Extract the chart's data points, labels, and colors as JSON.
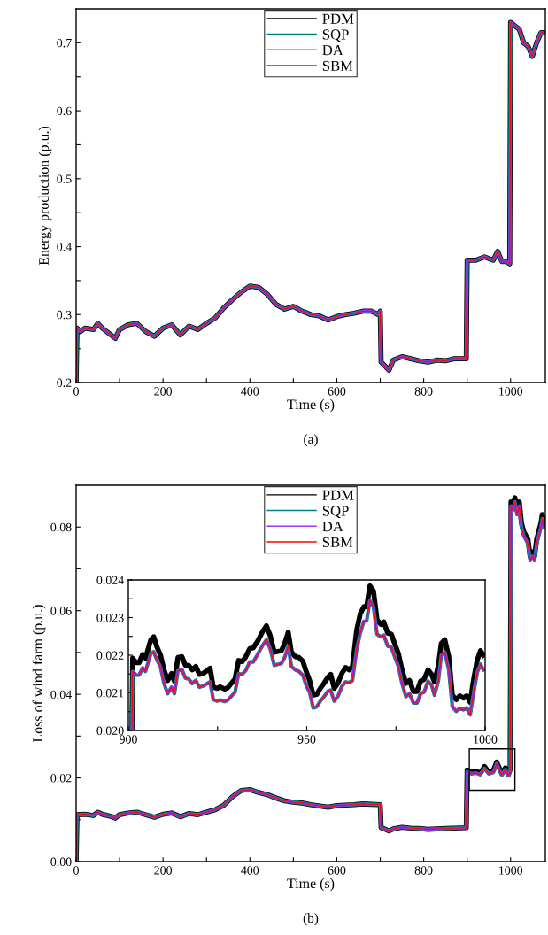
{
  "chart_data": [
    {
      "type": "line",
      "xlabel": "Time (s)",
      "ylabel": "Energy production (p.u.)",
      "annotations": [
        "(a)"
      ],
      "legend": "top",
      "xlim": [
        0,
        1080
      ],
      "ylim": [
        0.2,
        0.75
      ],
      "xticks": [
        0,
        {
          "value": 100,
          "label": null
        },
        200,
        {
          "value": 300,
          "label": null
        },
        400,
        {
          "value": 500,
          "label": null
        },
        600,
        {
          "value": 700,
          "label": null
        },
        800,
        {
          "value": 900,
          "label": null
        },
        1000
      ],
      "yticks": [
        0.2,
        {
          "value": 0.25,
          "label": null
        },
        0.3,
        {
          "value": 0.35,
          "label": null
        },
        0.4,
        {
          "value": 0.45,
          "label": null
        },
        0.5,
        {
          "value": 0.55,
          "label": null
        },
        0.6,
        {
          "value": 0.65,
          "label": null
        },
        0.7
      ],
      "x": [
        0,
        2,
        10,
        20,
        40,
        50,
        60,
        80,
        90,
        100,
        120,
        140,
        160,
        180,
        200,
        220,
        240,
        260,
        280,
        300,
        320,
        340,
        360,
        380,
        400,
        420,
        440,
        460,
        480,
        500,
        520,
        540,
        560,
        580,
        600,
        620,
        640,
        660,
        680,
        695,
        700,
        702,
        710,
        720,
        730,
        750,
        770,
        790,
        810,
        830,
        850,
        870,
        898,
        900,
        920,
        940,
        960,
        970,
        980,
        990,
        998,
        1000,
        1010,
        1020,
        1030,
        1040,
        1050,
        1060,
        1070,
        1075
      ],
      "series": [
        {
          "name": "PDM",
          "color": "#000000",
          "values": [
            0.2,
            0.28,
            0.275,
            0.28,
            0.278,
            0.287,
            0.28,
            0.27,
            0.265,
            0.278,
            0.285,
            0.287,
            0.275,
            0.268,
            0.28,
            0.285,
            0.27,
            0.283,
            0.278,
            0.287,
            0.295,
            0.31,
            0.322,
            0.333,
            0.342,
            0.34,
            0.33,
            0.315,
            0.308,
            0.312,
            0.305,
            0.3,
            0.298,
            0.292,
            0.297,
            0.3,
            0.302,
            0.305,
            0.305,
            0.3,
            0.305,
            0.23,
            0.225,
            0.218,
            0.233,
            0.238,
            0.235,
            0.232,
            0.23,
            0.233,
            0.232,
            0.235,
            0.235,
            0.38,
            0.38,
            0.385,
            0.38,
            0.393,
            0.378,
            0.378,
            0.375,
            0.73,
            0.725,
            0.72,
            0.7,
            0.695,
            0.68,
            0.7,
            0.715,
            0.715
          ]
        },
        {
          "name": "SQP",
          "color": "#008080",
          "values": [
            0.2,
            0.28,
            0.275,
            0.28,
            0.278,
            0.287,
            0.28,
            0.27,
            0.265,
            0.278,
            0.285,
            0.287,
            0.275,
            0.268,
            0.28,
            0.285,
            0.27,
            0.283,
            0.278,
            0.287,
            0.295,
            0.31,
            0.322,
            0.333,
            0.342,
            0.34,
            0.33,
            0.315,
            0.308,
            0.312,
            0.305,
            0.3,
            0.298,
            0.292,
            0.297,
            0.3,
            0.302,
            0.305,
            0.305,
            0.3,
            0.305,
            0.23,
            0.225,
            0.218,
            0.233,
            0.238,
            0.235,
            0.232,
            0.23,
            0.233,
            0.232,
            0.235,
            0.235,
            0.38,
            0.38,
            0.385,
            0.38,
            0.393,
            0.378,
            0.378,
            0.375,
            0.73,
            0.725,
            0.72,
            0.7,
            0.695,
            0.68,
            0.7,
            0.715,
            0.715
          ]
        },
        {
          "name": "DA",
          "color": "#9933ff",
          "values": [
            0.2,
            0.28,
            0.275,
            0.28,
            0.278,
            0.287,
            0.28,
            0.27,
            0.265,
            0.278,
            0.285,
            0.287,
            0.275,
            0.268,
            0.28,
            0.285,
            0.27,
            0.283,
            0.278,
            0.287,
            0.295,
            0.31,
            0.322,
            0.333,
            0.342,
            0.34,
            0.33,
            0.315,
            0.308,
            0.312,
            0.305,
            0.3,
            0.298,
            0.292,
            0.297,
            0.3,
            0.302,
            0.305,
            0.305,
            0.3,
            0.305,
            0.23,
            0.225,
            0.218,
            0.233,
            0.238,
            0.235,
            0.232,
            0.23,
            0.233,
            0.232,
            0.235,
            0.235,
            0.38,
            0.38,
            0.385,
            0.38,
            0.393,
            0.378,
            0.378,
            0.375,
            0.73,
            0.725,
            0.72,
            0.7,
            0.695,
            0.68,
            0.7,
            0.715,
            0.715
          ]
        },
        {
          "name": "SBM",
          "color": "#ff0000",
          "values": [
            0.2,
            0.28,
            0.275,
            0.28,
            0.278,
            0.287,
            0.28,
            0.27,
            0.265,
            0.278,
            0.285,
            0.287,
            0.275,
            0.268,
            0.28,
            0.285,
            0.27,
            0.283,
            0.278,
            0.287,
            0.295,
            0.31,
            0.322,
            0.333,
            0.342,
            0.34,
            0.33,
            0.315,
            0.308,
            0.312,
            0.305,
            0.3,
            0.298,
            0.292,
            0.297,
            0.3,
            0.302,
            0.305,
            0.305,
            0.3,
            0.305,
            0.23,
            0.225,
            0.218,
            0.233,
            0.238,
            0.235,
            0.232,
            0.23,
            0.233,
            0.232,
            0.235,
            0.235,
            0.38,
            0.38,
            0.385,
            0.38,
            0.393,
            0.378,
            0.378,
            0.375,
            0.73,
            0.725,
            0.72,
            0.7,
            0.695,
            0.68,
            0.7,
            0.715,
            0.715
          ]
        }
      ]
    },
    {
      "type": "line",
      "xlabel": "Time (s)",
      "ylabel": "Loss of wind farm (p.u.)",
      "annotations": [
        "(b)"
      ],
      "legend": "top",
      "xlim": [
        0,
        1080
      ],
      "ylim": [
        0,
        0.09
      ],
      "xticks": [
        0,
        {
          "value": 100,
          "label": null
        },
        200,
        {
          "value": 300,
          "label": null
        },
        400,
        {
          "value": 500,
          "label": null
        },
        600,
        {
          "value": 700,
          "label": null
        },
        800,
        {
          "value": 900,
          "label": null
        },
        1000
      ],
      "yticks": [
        {
          "value": 0,
          "label": "0.00"
        },
        {
          "value": 0.01,
          "label": null
        },
        {
          "value": 0.02,
          "label": "0.02"
        },
        {
          "value": 0.03,
          "label": null
        },
        {
          "value": 0.04,
          "label": "0.04"
        },
        {
          "value": 0.05,
          "label": null
        },
        {
          "value": 0.06,
          "label": "0.06"
        },
        {
          "value": 0.07,
          "label": null
        },
        {
          "value": 0.08,
          "label": "0.08"
        }
      ],
      "x": [
        0,
        2,
        20,
        40,
        50,
        60,
        80,
        90,
        100,
        120,
        140,
        160,
        180,
        200,
        220,
        240,
        260,
        280,
        300,
        320,
        340,
        360,
        380,
        400,
        420,
        440,
        460,
        480,
        500,
        520,
        540,
        560,
        580,
        600,
        620,
        640,
        660,
        680,
        700,
        702,
        710,
        720,
        730,
        750,
        770,
        790,
        810,
        830,
        850,
        870,
        898,
        900,
        910,
        920,
        930,
        940,
        950,
        960,
        968,
        980,
        988,
        995,
        999,
        1001,
        1005,
        1010,
        1015,
        1020,
        1025,
        1030,
        1040,
        1045,
        1050,
        1055,
        1060,
        1070,
        1073,
        1076
      ],
      "series": [
        {
          "name": "PDM",
          "color": "#000000",
          "values": [
            0,
            0.0112,
            0.0113,
            0.011,
            0.0118,
            0.0113,
            0.0108,
            0.0104,
            0.0112,
            0.0116,
            0.0118,
            0.0112,
            0.0106,
            0.0113,
            0.0116,
            0.0107,
            0.0115,
            0.0112,
            0.0118,
            0.0124,
            0.0135,
            0.0155,
            0.017,
            0.0172,
            0.0165,
            0.016,
            0.0152,
            0.0145,
            0.0142,
            0.014,
            0.0136,
            0.0133,
            0.013,
            0.0134,
            0.0135,
            0.0136,
            0.0138,
            0.0137,
            0.0136,
            0.0081,
            0.0078,
            0.0073,
            0.0078,
            0.0082,
            0.008,
            0.0079,
            0.0077,
            0.0078,
            0.0079,
            0.008,
            0.0081,
            0.0219,
            0.0214,
            0.0216,
            0.0211,
            0.0227,
            0.0213,
            0.0217,
            0.0238,
            0.021,
            0.0224,
            0.0208,
            0.022,
            0.086,
            0.085,
            0.087,
            0.084,
            0.086,
            0.081,
            0.079,
            0.077,
            0.073,
            0.074,
            0.073,
            0.077,
            0.081,
            0.083,
            0.081
          ]
        },
        {
          "name": "SQP",
          "color": "#008080",
          "values": [
            0,
            0.0112,
            0.0113,
            0.011,
            0.0118,
            0.0113,
            0.0108,
            0.0104,
            0.0112,
            0.0116,
            0.0118,
            0.0112,
            0.0106,
            0.0113,
            0.0116,
            0.0107,
            0.0115,
            0.0112,
            0.0118,
            0.0124,
            0.0135,
            0.0155,
            0.017,
            0.0172,
            0.0165,
            0.016,
            0.0152,
            0.0145,
            0.0142,
            0.014,
            0.0136,
            0.0133,
            0.013,
            0.0134,
            0.0135,
            0.0136,
            0.0138,
            0.0137,
            0.0136,
            0.0081,
            0.0078,
            0.0073,
            0.0078,
            0.0082,
            0.008,
            0.0079,
            0.0077,
            0.0078,
            0.0079,
            0.008,
            0.0081,
            0.0215,
            0.021,
            0.0212,
            0.0208,
            0.0223,
            0.021,
            0.0213,
            0.0234,
            0.0207,
            0.022,
            0.0205,
            0.0216,
            0.085,
            0.084,
            0.086,
            0.083,
            0.085,
            0.08,
            0.078,
            0.076,
            0.072,
            0.073,
            0.072,
            0.076,
            0.08,
            0.082,
            0.08
          ]
        },
        {
          "name": "DA",
          "color": "#9933ff",
          "values": [
            0,
            0.0112,
            0.0113,
            0.011,
            0.0118,
            0.0113,
            0.0108,
            0.0104,
            0.0112,
            0.0116,
            0.0118,
            0.0112,
            0.0106,
            0.0113,
            0.0116,
            0.0107,
            0.0115,
            0.0112,
            0.0118,
            0.0124,
            0.0135,
            0.0155,
            0.017,
            0.0172,
            0.0165,
            0.016,
            0.0152,
            0.0145,
            0.0142,
            0.014,
            0.0136,
            0.0133,
            0.013,
            0.0134,
            0.0135,
            0.0136,
            0.0138,
            0.0137,
            0.0136,
            0.0081,
            0.0078,
            0.0073,
            0.0078,
            0.0082,
            0.008,
            0.0079,
            0.0077,
            0.0078,
            0.0079,
            0.008,
            0.0081,
            0.0215,
            0.021,
            0.0212,
            0.0208,
            0.0223,
            0.021,
            0.0213,
            0.0234,
            0.0207,
            0.022,
            0.0205,
            0.0216,
            0.085,
            0.084,
            0.086,
            0.083,
            0.085,
            0.08,
            0.078,
            0.076,
            0.072,
            0.073,
            0.072,
            0.076,
            0.08,
            0.082,
            0.08
          ]
        },
        {
          "name": "SBM",
          "color": "#ff0000",
          "values": [
            0,
            0.0112,
            0.0113,
            0.011,
            0.0118,
            0.0113,
            0.0108,
            0.0104,
            0.0112,
            0.0116,
            0.0118,
            0.0112,
            0.0106,
            0.0113,
            0.0116,
            0.0107,
            0.0115,
            0.0112,
            0.0118,
            0.0124,
            0.0135,
            0.0155,
            0.017,
            0.0172,
            0.0165,
            0.016,
            0.0152,
            0.0145,
            0.0142,
            0.014,
            0.0136,
            0.0133,
            0.013,
            0.0134,
            0.0135,
            0.0136,
            0.0138,
            0.0137,
            0.0136,
            0.0081,
            0.0078,
            0.0073,
            0.0078,
            0.0082,
            0.008,
            0.0079,
            0.0077,
            0.0078,
            0.0079,
            0.008,
            0.0081,
            0.0215,
            0.021,
            0.0212,
            0.0208,
            0.0223,
            0.021,
            0.0213,
            0.0234,
            0.0207,
            0.022,
            0.0205,
            0.0216,
            0.085,
            0.084,
            0.086,
            0.083,
            0.085,
            0.08,
            0.078,
            0.076,
            0.072,
            0.073,
            0.072,
            0.076,
            0.08,
            0.082,
            0.08
          ]
        }
      ]
    },
    {
      "type": "line",
      "xlim": [
        900,
        1000
      ],
      "ylim": [
        0.02,
        0.024
      ],
      "xticks": [
        900,
        {
          "value": 925,
          "label": null
        },
        950,
        {
          "value": 975,
          "label": null
        },
        1000
      ],
      "yticks": [
        {
          "value": 0.02,
          "label": "0.020"
        },
        {
          "value": 0.0205,
          "label": null
        },
        {
          "value": 0.021,
          "label": "0.021"
        },
        {
          "value": 0.0215,
          "label": null
        },
        {
          "value": 0.022,
          "label": "0.022"
        },
        {
          "value": 0.0225,
          "label": null
        },
        {
          "value": 0.023,
          "label": "0.023"
        },
        {
          "value": 0.0235,
          "label": null
        },
        {
          "value": 0.024,
          "label": "0.024"
        }
      ],
      "x": [
        901.0,
        901.2,
        902.2,
        903.0,
        904.0,
        904.8,
        906.3,
        907.1,
        908.0,
        909.0,
        910.0,
        911.0,
        912.1,
        912.9,
        913.9,
        915.0,
        916.0,
        916.9,
        917.9,
        918.9,
        919.9,
        920.9,
        922.9,
        923.8,
        924.9,
        925.7,
        927.0,
        927.9,
        929.9,
        930.9,
        931.9,
        932.9,
        934.0,
        935.0,
        936.1,
        937.7,
        938.7,
        939.8,
        940.9,
        941.9,
        942.9,
        943.8,
        944.8,
        945.7,
        946.8,
        947.8,
        948.9,
        949.9,
        950.8,
        951.8,
        952.8,
        953.8,
        954.8,
        955.9,
        956.7,
        957.7,
        958.8,
        959.9,
        960.9,
        961.9,
        962.8,
        964.0,
        965.0,
        966.0,
        966.8,
        967.7,
        968.7,
        969.7,
        970.8,
        971.6,
        972.7,
        973.7,
        974.8,
        975.7,
        976.7,
        977.8,
        978.8,
        979.9,
        980.9,
        981.9,
        982.9,
        984.0,
        985.0,
        985.8,
        986.9,
        987.7,
        988.7,
        989.8,
        990.8,
        991.9,
        992.9,
        993.9,
        994.8,
        995.8,
        996.8,
        997.8,
        998.7,
        999.5
      ],
      "series": [
        {
          "color": "#000000",
          "values": [
            0.02,
            0.02192,
            0.0218,
            0.0218,
            0.02202,
            0.02192,
            0.02241,
            0.02249,
            0.02222,
            0.022,
            0.02161,
            0.02133,
            0.02151,
            0.02131,
            0.02194,
            0.02196,
            0.02173,
            0.02173,
            0.02161,
            0.0217,
            0.02149,
            0.02151,
            0.02165,
            0.02115,
            0.02112,
            0.02116,
            0.0211,
            0.02114,
            0.02137,
            0.02186,
            0.02183,
            0.02196,
            0.02217,
            0.0222,
            0.02235,
            0.02264,
            0.02278,
            0.02251,
            0.02208,
            0.0221,
            0.02212,
            0.02231,
            0.02261,
            0.02208,
            0.02196,
            0.02194,
            0.02184,
            0.02155,
            0.02133,
            0.02094,
            0.02096,
            0.02112,
            0.02125,
            0.02141,
            0.02149,
            0.02112,
            0.02127,
            0.02153,
            0.02167,
            0.02161,
            0.0217,
            0.02267,
            0.0231,
            0.02329,
            0.02329,
            0.02384,
            0.02371,
            0.02294,
            0.02282,
            0.02288,
            0.02259,
            0.02256,
            0.02227,
            0.02204,
            0.02161,
            0.02125,
            0.02133,
            0.02104,
            0.02104,
            0.02131,
            0.02136,
            0.02161,
            0.02149,
            0.02129,
            0.02173,
            0.02231,
            0.02241,
            0.02196,
            0.02094,
            0.02082,
            0.02092,
            0.02086,
            0.02092,
            0.02075,
            0.02137,
            0.02188,
            0.02212,
            0.022
          ]
        },
        {
          "color": "#008080",
          "values": [
            0.02,
            0.02157,
            0.02147,
            0.02147,
            0.02166,
            0.02157,
            0.02205,
            0.02209,
            0.02188,
            0.02169,
            0.02125,
            0.02098,
            0.02115,
            0.02098,
            0.02159,
            0.02162,
            0.02139,
            0.02137,
            0.02125,
            0.02133,
            0.02115,
            0.02118,
            0.02129,
            0.02082,
            0.02078,
            0.02081,
            0.02077,
            0.02081,
            0.02102,
            0.02151,
            0.02149,
            0.02159,
            0.02182,
            0.02182,
            0.022,
            0.02227,
            0.02241,
            0.02216,
            0.02173,
            0.02176,
            0.02178,
            0.02194,
            0.02224,
            0.0217,
            0.02161,
            0.02157,
            0.02147,
            0.02118,
            0.02102,
            0.0206,
            0.02063,
            0.02078,
            0.02089,
            0.02104,
            0.02107,
            0.02078,
            0.02092,
            0.02118,
            0.02129,
            0.02127,
            0.02133,
            0.02216,
            0.02259,
            0.0229,
            0.02292,
            0.02345,
            0.02329,
            0.02256,
            0.02249,
            0.02253,
            0.02224,
            0.02221,
            0.02192,
            0.0217,
            0.02125,
            0.0209,
            0.02098,
            0.02073,
            0.02073,
            0.02098,
            0.02102,
            0.02131,
            0.0212,
            0.02094,
            0.02133,
            0.022,
            0.02208,
            0.02161,
            0.02063,
            0.02051,
            0.02059,
            0.02055,
            0.0206,
            0.02042,
            0.02102,
            0.02155,
            0.02176,
            0.02161
          ]
        },
        {
          "color": "#9933ff",
          "values": [
            0.02,
            0.02157,
            0.02147,
            0.02147,
            0.02166,
            0.02157,
            0.02205,
            0.02209,
            0.02188,
            0.02169,
            0.02125,
            0.02098,
            0.02115,
            0.02098,
            0.02159,
            0.02162,
            0.02139,
            0.02137,
            0.02125,
            0.02133,
            0.02115,
            0.02118,
            0.02129,
            0.02082,
            0.02078,
            0.02081,
            0.02077,
            0.02081,
            0.02102,
            0.02151,
            0.02149,
            0.02159,
            0.02182,
            0.02182,
            0.022,
            0.02227,
            0.02241,
            0.02216,
            0.02173,
            0.02176,
            0.02178,
            0.02194,
            0.02224,
            0.0217,
            0.02161,
            0.02157,
            0.02147,
            0.02118,
            0.02102,
            0.0206,
            0.02063,
            0.02078,
            0.02089,
            0.02104,
            0.02107,
            0.02078,
            0.02092,
            0.02118,
            0.02129,
            0.02127,
            0.02133,
            0.02216,
            0.02259,
            0.0229,
            0.02292,
            0.02345,
            0.02329,
            0.02256,
            0.02249,
            0.02253,
            0.02224,
            0.02221,
            0.02192,
            0.0217,
            0.02125,
            0.0209,
            0.02098,
            0.02073,
            0.02073,
            0.02098,
            0.02102,
            0.02131,
            0.0212,
            0.02094,
            0.02133,
            0.022,
            0.02208,
            0.02161,
            0.02063,
            0.02051,
            0.02059,
            0.02055,
            0.0206,
            0.02042,
            0.02102,
            0.02155,
            0.02176,
            0.02161
          ]
        },
        {
          "color": "#ff0000",
          "values": [
            0.02,
            0.02157,
            0.02147,
            0.02147,
            0.02166,
            0.02157,
            0.02205,
            0.02209,
            0.02188,
            0.02169,
            0.02125,
            0.02098,
            0.02115,
            0.02098,
            0.02159,
            0.02162,
            0.02139,
            0.02137,
            0.02125,
            0.02133,
            0.02115,
            0.02118,
            0.02129,
            0.02082,
            0.02078,
            0.02081,
            0.02077,
            0.02081,
            0.02102,
            0.02151,
            0.02149,
            0.02159,
            0.02182,
            0.02182,
            0.022,
            0.02227,
            0.02241,
            0.02216,
            0.02173,
            0.02176,
            0.02178,
            0.02194,
            0.02224,
            0.0217,
            0.02161,
            0.02157,
            0.02147,
            0.02118,
            0.02102,
            0.0206,
            0.02063,
            0.02078,
            0.02089,
            0.02104,
            0.02107,
            0.02078,
            0.02092,
            0.02118,
            0.02129,
            0.02127,
            0.02133,
            0.02216,
            0.02259,
            0.0229,
            0.02292,
            0.02345,
            0.02329,
            0.02256,
            0.02249,
            0.02253,
            0.02224,
            0.02221,
            0.02192,
            0.0217,
            0.02125,
            0.0209,
            0.02098,
            0.02073,
            0.02073,
            0.02098,
            0.02102,
            0.02131,
            0.0212,
            0.02094,
            0.02133,
            0.022,
            0.02208,
            0.02161,
            0.02063,
            0.02051,
            0.02059,
            0.02055,
            0.0206,
            0.02042,
            0.02102,
            0.02155,
            0.02176,
            0.02161
          ]
        }
      ]
    }
  ]
}
